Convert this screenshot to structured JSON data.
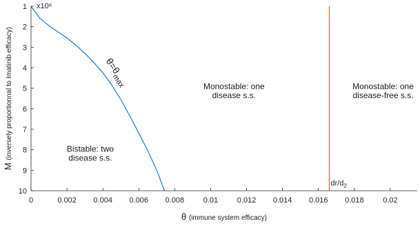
{
  "chart_data": {
    "type": "line",
    "title": "",
    "xlabel": "θ",
    "xlabel_note": "(immune system efficacy)",
    "ylabel": "M",
    "ylabel_note": "(inversely proportionnal to Imatinib efficacy)",
    "y_exponent_label": "x10⁶",
    "xlim": [
      0,
      0.0215
    ],
    "ylim": [
      1,
      10
    ],
    "y_axis_inverted": true,
    "grid": false,
    "x_ticks": [
      0,
      0.002,
      0.004,
      0.006,
      0.008,
      0.01,
      0.012,
      0.014,
      0.016,
      0.018,
      0.02
    ],
    "x_tick_labels": [
      "0",
      "0.002",
      "0.004",
      "0.006",
      "0.008",
      "0.01",
      "0.012",
      "0.014",
      "0.016",
      "0.018",
      "0.02"
    ],
    "y_ticks": [
      1,
      2,
      3,
      4,
      5,
      6,
      7,
      8,
      9,
      10
    ],
    "y_tick_labels": [
      "1",
      "2",
      "3",
      "4",
      "5",
      "6",
      "7",
      "8",
      "9",
      "10"
    ],
    "series": [
      {
        "name": "θ=θmax",
        "color": "#0072bd",
        "x": [
          0,
          0.0005,
          0.001,
          0.0015,
          0.002,
          0.0025,
          0.003,
          0.0035,
          0.004,
          0.0045,
          0.005,
          0.0055,
          0.006,
          0.0065,
          0.007,
          0.0073,
          0.00743
        ],
        "y": [
          1.0,
          1.6,
          1.95,
          2.25,
          2.55,
          2.9,
          3.3,
          3.75,
          4.25,
          4.85,
          5.55,
          6.35,
          7.2,
          8.05,
          9.0,
          9.7,
          10.0
        ]
      },
      {
        "name": "dr/d2",
        "color": "#d95319",
        "x": [
          0.0166,
          0.0166
        ],
        "y": [
          1.0,
          10.0
        ]
      }
    ],
    "curve_label": {
      "prefix": "θ=θ",
      "subscript": "max",
      "x": 0.0044,
      "y": 4.7
    },
    "vline_label": {
      "prefix": "dr/d",
      "subscript": "2",
      "x": 0.0166,
      "y": 9.75
    },
    "annotations": [
      {
        "lines": [
          "Bistable: two",
          "disease s.s."
        ],
        "x": 0.0033,
        "y": 8.1
      },
      {
        "lines": [
          "Monostable: one",
          "disease s.s."
        ],
        "x": 0.0113,
        "y": 5.05
      },
      {
        "lines": [
          "Monostable: one",
          "disease-free s.s."
        ],
        "x": 0.0196,
        "y": 5.05
      }
    ]
  }
}
